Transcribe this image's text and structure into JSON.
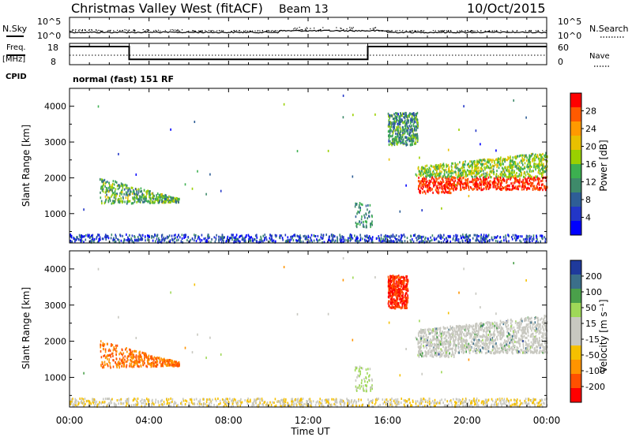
{
  "header": {
    "title": "Christmas Valley West (fitACF)",
    "beam": "Beam 13",
    "date": "10/Oct/2015"
  },
  "noise_panel": {
    "left_label": "N.Sky",
    "right_label": "N.Search",
    "left_ticks": [
      "10^5",
      "10^0"
    ],
    "right_ticks": [
      "10^5",
      "10^0"
    ]
  },
  "freq_panel": {
    "left_label_1": "Freq.",
    "left_label_2": "[MHz]",
    "left_label_3": "CPID",
    "right_label": "Nave",
    "left_ticks": [
      "18",
      "8"
    ],
    "right_ticks": [
      "60",
      "0"
    ]
  },
  "cpid_text": "normal (fast) 151 RF",
  "power_panel": {
    "ylabel": "Slant Range [km]",
    "colorbar_label": "Power [dB]",
    "colorbar_ticks": [
      "28",
      "24",
      "20",
      "16",
      "12",
      "8",
      "4"
    ],
    "colorbar_colors": [
      "#ff0000",
      "#ff5a00",
      "#ff9a00",
      "#e8c000",
      "#9ad000",
      "#3cb050",
      "#3e8a6a",
      "#2e5e96",
      "#2236c8",
      "#0000ff"
    ]
  },
  "velocity_panel": {
    "ylabel": "Slant Range [km]",
    "colorbar_label": "Velocity [m s⁻¹]",
    "colorbar_ticks": [
      "200",
      "100",
      "50",
      "15",
      "-15",
      "-50",
      "-100",
      "-200"
    ],
    "colorbar_colors": [
      "#1f3a9c",
      "#3b6f8a",
      "#4aa04a",
      "#9fd858",
      "#c8c8c0",
      "#c8c8c0",
      "#f5c000",
      "#ff9400",
      "#ff5000",
      "#ff0000"
    ]
  },
  "xaxis": {
    "label": "Time UT",
    "ticks": [
      "00:00",
      "04:00",
      "08:00",
      "12:00",
      "16:00",
      "20:00",
      "00:00"
    ]
  },
  "chart_data": [
    {
      "type": "line",
      "title": "Christmas Valley West (fitACF)",
      "xlabel": "",
      "ylabel": "N.Sky",
      "yscale": "log",
      "ylim": [
        1,
        100000
      ],
      "xlim_hours": [
        0,
        24
      ]
    },
    {
      "type": "line",
      "xlabel": "",
      "ylabel": "Freq. [MHz]",
      "ylim": [
        8,
        18
      ],
      "series": [
        {
          "name": "Freq.",
          "x": [
            "00:00",
            "03:00",
            "03:00",
            "15:00",
            "15:00",
            "24:00"
          ],
          "values": [
            16.5,
            16.5,
            10.5,
            10.5,
            16.5,
            16.5
          ]
        }
      ]
    },
    {
      "type": "heatmap",
      "ylabel": "Slant Range [km]",
      "ylim": [
        180,
        4500
      ],
      "colorbar": "Power [dB]",
      "colorbar_range": [
        0,
        32
      ],
      "regions_hours_km": [
        {
          "start": 1.5,
          "end": 5.5,
          "range": [
            1300,
            2000
          ],
          "value_db": 14
        },
        {
          "start": 17.5,
          "end": 24,
          "range": [
            1500,
            2500
          ],
          "value_db": 28
        },
        {
          "start": 16.0,
          "end": 17.5,
          "range": [
            2900,
            3800
          ],
          "value_db": 12
        },
        {
          "start": 0,
          "end": 24,
          "range": [
            180,
            400
          ],
          "value_db": 6
        }
      ]
    },
    {
      "type": "heatmap",
      "ylabel": "Slant Range [km]",
      "ylim": [
        180,
        4500
      ],
      "colorbar": "Velocity [m s⁻¹]",
      "colorbar_range": [
        -250,
        250
      ],
      "regions_hours_km": [
        {
          "start": 1.5,
          "end": 5.5,
          "range": [
            1300,
            2000
          ],
          "value_ms": -150
        },
        {
          "start": 17.5,
          "end": 24,
          "range": [
            1500,
            2500
          ],
          "value_ms": 0
        },
        {
          "start": 16.0,
          "end": 17.0,
          "range": [
            2900,
            3800
          ],
          "value_ms": -200
        },
        {
          "start": 0,
          "end": 24,
          "range": [
            180,
            400
          ],
          "value_ms": -40
        }
      ]
    }
  ],
  "colors": {
    "axis": "#000000",
    "background": "#ffffff"
  }
}
